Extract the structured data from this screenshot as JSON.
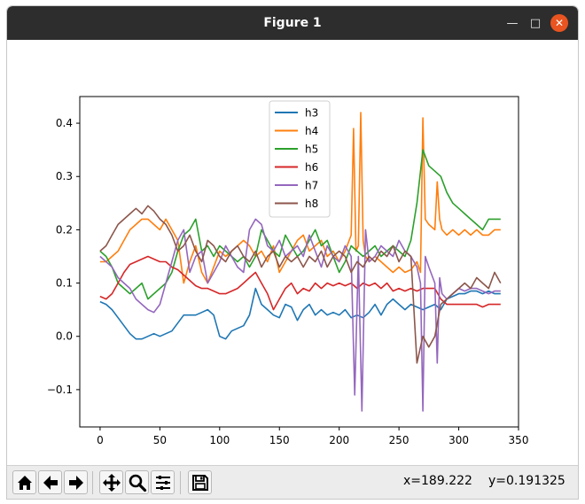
{
  "window": {
    "title": "Figure 1"
  },
  "toolbar": {
    "buttons": [
      "home-icon",
      "back-icon",
      "forward-icon",
      "pan-icon",
      "zoom-icon",
      "configure-subplots-icon",
      "save-icon"
    ],
    "x_readout": "x=189.222",
    "y_readout": "y=0.191325"
  },
  "colors": {
    "h3": "#1f77b4",
    "h4": "#ff7f0e",
    "h5": "#2ca02c",
    "h6": "#d62728",
    "h7": "#9467bd",
    "h8": "#8c564b"
  },
  "chart_data": {
    "type": "line",
    "xlim": [
      -17,
      350
    ],
    "ylim": [
      -0.17,
      0.45
    ],
    "xticks": [
      0,
      50,
      100,
      150,
      200,
      250,
      300,
      350
    ],
    "yticks": [
      -0.1,
      0.0,
      0.1,
      0.2,
      0.3,
      0.4
    ],
    "ytick_labels": [
      "−0.1",
      "0.0",
      "0.1",
      "0.2",
      "0.3",
      "0.4"
    ],
    "grid": false,
    "legend_position": "top-center",
    "series": [
      {
        "name": "h3",
        "color": "#1f77b4",
        "x": [
          0,
          5,
          10,
          15,
          20,
          25,
          30,
          35,
          40,
          45,
          50,
          55,
          60,
          65,
          70,
          75,
          80,
          85,
          90,
          95,
          100,
          105,
          110,
          115,
          120,
          125,
          130,
          135,
          140,
          145,
          150,
          155,
          160,
          165,
          170,
          175,
          180,
          185,
          190,
          195,
          200,
          205,
          210,
          215,
          220,
          225,
          230,
          235,
          240,
          245,
          250,
          255,
          260,
          265,
          270,
          275,
          280,
          285,
          290,
          295,
          300,
          305,
          310,
          315,
          320,
          325,
          330,
          335
        ],
        "y": [
          0.065,
          0.06,
          0.05,
          0.035,
          0.02,
          0.005,
          -0.005,
          -0.005,
          0.0,
          0.005,
          0.0,
          0.005,
          0.01,
          0.025,
          0.04,
          0.04,
          0.04,
          0.045,
          0.05,
          0.04,
          0.0,
          -0.005,
          0.01,
          0.015,
          0.02,
          0.04,
          0.09,
          0.06,
          0.05,
          0.04,
          0.035,
          0.06,
          0.055,
          0.03,
          0.05,
          0.06,
          0.04,
          0.05,
          0.04,
          0.045,
          0.04,
          0.05,
          0.035,
          0.04,
          0.035,
          0.045,
          0.06,
          0.04,
          0.06,
          0.07,
          0.06,
          0.05,
          0.06,
          0.055,
          0.05,
          0.055,
          0.06,
          0.05,
          0.07,
          0.075,
          0.08,
          0.08,
          0.085,
          0.085,
          0.08,
          0.085,
          0.08,
          0.08
        ]
      },
      {
        "name": "h4",
        "color": "#ff7f0e",
        "x": [
          0,
          5,
          10,
          15,
          20,
          25,
          30,
          35,
          40,
          45,
          50,
          55,
          60,
          65,
          70,
          75,
          80,
          85,
          90,
          95,
          100,
          105,
          110,
          115,
          120,
          125,
          130,
          135,
          140,
          145,
          150,
          155,
          160,
          165,
          170,
          175,
          180,
          185,
          190,
          195,
          200,
          205,
          210,
          212,
          214,
          216,
          218,
          220,
          222,
          225,
          230,
          235,
          240,
          245,
          250,
          255,
          260,
          265,
          268,
          270,
          272,
          275,
          280,
          282,
          284,
          286,
          290,
          295,
          300,
          305,
          310,
          315,
          320,
          325,
          330,
          335
        ],
        "y": [
          0.14,
          0.14,
          0.15,
          0.16,
          0.18,
          0.2,
          0.21,
          0.22,
          0.22,
          0.21,
          0.2,
          0.22,
          0.2,
          0.18,
          0.1,
          0.14,
          0.17,
          0.12,
          0.1,
          0.13,
          0.16,
          0.15,
          0.16,
          0.17,
          0.18,
          0.17,
          0.15,
          0.16,
          0.14,
          0.17,
          0.12,
          0.14,
          0.16,
          0.18,
          0.19,
          0.16,
          0.17,
          0.18,
          0.15,
          0.16,
          0.14,
          0.16,
          0.19,
          0.39,
          0.16,
          0.17,
          0.42,
          0.18,
          0.15,
          0.14,
          0.15,
          0.14,
          0.13,
          0.12,
          0.13,
          0.12,
          0.125,
          0.14,
          0.12,
          0.41,
          0.22,
          0.21,
          0.2,
          0.29,
          0.22,
          0.2,
          0.19,
          0.2,
          0.19,
          0.2,
          0.19,
          0.2,
          0.19,
          0.19,
          0.2,
          0.2
        ]
      },
      {
        "name": "h5",
        "color": "#2ca02c",
        "x": [
          0,
          5,
          10,
          15,
          20,
          25,
          30,
          35,
          40,
          45,
          50,
          55,
          60,
          65,
          70,
          75,
          80,
          85,
          90,
          95,
          100,
          105,
          110,
          115,
          120,
          125,
          130,
          135,
          140,
          145,
          150,
          155,
          160,
          165,
          170,
          175,
          180,
          185,
          190,
          195,
          200,
          205,
          210,
          215,
          220,
          225,
          230,
          235,
          240,
          245,
          250,
          255,
          260,
          265,
          270,
          275,
          280,
          285,
          290,
          295,
          300,
          305,
          310,
          315,
          320,
          325,
          330,
          335
        ],
        "y": [
          0.16,
          0.15,
          0.13,
          0.1,
          0.09,
          0.08,
          0.09,
          0.1,
          0.07,
          0.08,
          0.09,
          0.1,
          0.12,
          0.16,
          0.19,
          0.2,
          0.22,
          0.16,
          0.17,
          0.15,
          0.17,
          0.16,
          0.15,
          0.14,
          0.15,
          0.13,
          0.15,
          0.2,
          0.18,
          0.16,
          0.15,
          0.19,
          0.17,
          0.15,
          0.16,
          0.18,
          0.2,
          0.17,
          0.18,
          0.15,
          0.12,
          0.14,
          0.17,
          0.16,
          0.15,
          0.16,
          0.17,
          0.15,
          0.16,
          0.17,
          0.16,
          0.15,
          0.18,
          0.25,
          0.35,
          0.32,
          0.31,
          0.3,
          0.27,
          0.25,
          0.24,
          0.23,
          0.22,
          0.21,
          0.2,
          0.22,
          0.22,
          0.22
        ]
      },
      {
        "name": "h6",
        "color": "#d62728",
        "x": [
          0,
          5,
          10,
          15,
          20,
          25,
          30,
          35,
          40,
          45,
          50,
          55,
          60,
          65,
          70,
          75,
          80,
          85,
          90,
          95,
          100,
          105,
          110,
          115,
          120,
          125,
          130,
          135,
          140,
          145,
          150,
          155,
          160,
          165,
          170,
          175,
          180,
          185,
          190,
          195,
          200,
          205,
          210,
          215,
          220,
          225,
          230,
          235,
          240,
          245,
          250,
          255,
          260,
          265,
          270,
          275,
          280,
          285,
          290,
          295,
          300,
          305,
          310,
          315,
          320,
          325,
          330,
          335
        ],
        "y": [
          0.075,
          0.07,
          0.08,
          0.1,
          0.12,
          0.135,
          0.14,
          0.145,
          0.15,
          0.145,
          0.14,
          0.14,
          0.13,
          0.125,
          0.115,
          0.105,
          0.095,
          0.09,
          0.09,
          0.085,
          0.08,
          0.08,
          0.085,
          0.09,
          0.1,
          0.11,
          0.12,
          0.1,
          0.08,
          0.05,
          0.07,
          0.09,
          0.1,
          0.08,
          0.09,
          0.085,
          0.1,
          0.09,
          0.1,
          0.095,
          0.1,
          0.095,
          0.1,
          0.09,
          0.1,
          0.095,
          0.1,
          0.09,
          0.1,
          0.085,
          0.09,
          0.085,
          0.09,
          0.085,
          0.09,
          0.09,
          0.09,
          0.07,
          0.06,
          0.06,
          0.06,
          0.06,
          0.06,
          0.06,
          0.055,
          0.06,
          0.06,
          0.06
        ]
      },
      {
        "name": "h7",
        "color": "#9467bd",
        "x": [
          0,
          5,
          10,
          15,
          20,
          25,
          30,
          35,
          40,
          45,
          50,
          55,
          60,
          65,
          70,
          75,
          80,
          85,
          90,
          95,
          100,
          105,
          110,
          115,
          120,
          125,
          130,
          135,
          140,
          145,
          150,
          155,
          160,
          165,
          170,
          175,
          180,
          185,
          190,
          195,
          200,
          205,
          210,
          213,
          216,
          219,
          222,
          225,
          230,
          235,
          240,
          245,
          250,
          255,
          260,
          265,
          268,
          270,
          272,
          275,
          280,
          282,
          284,
          286,
          290,
          295,
          300,
          305,
          310,
          315,
          320,
          325,
          330,
          335
        ],
        "y": [
          0.15,
          0.14,
          0.13,
          0.11,
          0.1,
          0.09,
          0.07,
          0.06,
          0.05,
          0.045,
          0.06,
          0.1,
          0.14,
          0.18,
          0.2,
          0.12,
          0.15,
          0.16,
          0.1,
          0.12,
          0.14,
          0.17,
          0.15,
          0.13,
          0.12,
          0.2,
          0.22,
          0.21,
          0.17,
          0.16,
          0.18,
          0.15,
          0.16,
          0.17,
          0.15,
          0.19,
          0.16,
          0.13,
          0.17,
          0.15,
          0.14,
          0.17,
          0.15,
          -0.11,
          0.15,
          -0.14,
          0.2,
          0.14,
          0.15,
          0.17,
          0.16,
          0.15,
          0.18,
          0.16,
          0.15,
          0.13,
          0.1,
          -0.14,
          0.15,
          0.13,
          0.1,
          -0.05,
          0.11,
          0.08,
          0.07,
          0.08,
          0.09,
          0.085,
          0.09,
          0.09,
          0.085,
          0.08,
          0.085,
          0.085
        ]
      },
      {
        "name": "h8",
        "color": "#8c564b",
        "x": [
          0,
          5,
          10,
          15,
          20,
          25,
          30,
          35,
          40,
          45,
          50,
          55,
          60,
          65,
          70,
          75,
          80,
          85,
          90,
          95,
          100,
          105,
          110,
          115,
          120,
          125,
          130,
          135,
          140,
          145,
          150,
          155,
          160,
          165,
          170,
          175,
          180,
          185,
          190,
          195,
          200,
          205,
          210,
          215,
          220,
          225,
          230,
          235,
          240,
          245,
          250,
          255,
          260,
          265,
          270,
          275,
          280,
          285,
          290,
          295,
          300,
          305,
          310,
          315,
          320,
          325,
          330,
          335
        ],
        "y": [
          0.16,
          0.17,
          0.19,
          0.21,
          0.22,
          0.23,
          0.24,
          0.23,
          0.245,
          0.235,
          0.22,
          0.21,
          0.19,
          0.16,
          0.17,
          0.19,
          0.16,
          0.14,
          0.18,
          0.17,
          0.15,
          0.14,
          0.16,
          0.17,
          0.15,
          0.14,
          0.16,
          0.13,
          0.15,
          0.16,
          0.13,
          0.15,
          0.14,
          0.15,
          0.13,
          0.15,
          0.14,
          0.16,
          0.13,
          0.15,
          0.16,
          0.15,
          0.12,
          0.14,
          0.13,
          0.15,
          0.14,
          0.16,
          0.15,
          0.17,
          0.14,
          0.16,
          0.15,
          -0.05,
          0.0,
          -0.02,
          0.0,
          0.06,
          0.07,
          0.08,
          0.09,
          0.1,
          0.09,
          0.11,
          0.1,
          0.09,
          0.12,
          0.1
        ]
      }
    ]
  }
}
